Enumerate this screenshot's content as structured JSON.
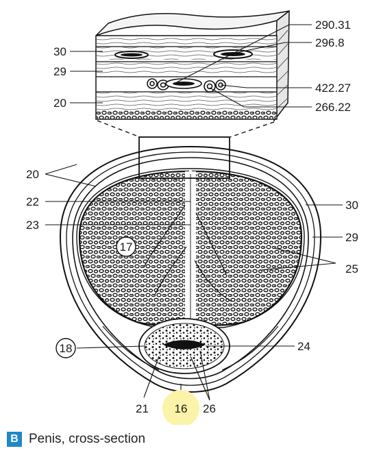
{
  "inset_labels": {
    "label_290_31": "290.31",
    "label_296_8": "296.8",
    "label_422_27": "422.27",
    "label_266_22": "266.22",
    "label_30": "30",
    "label_29": "29",
    "label_20": "20"
  },
  "section_labels": {
    "label_20": "20",
    "label_22": "22",
    "label_23": "23",
    "label_30": "30",
    "label_29": "29",
    "label_17": "17",
    "label_25": "25",
    "label_18": "18",
    "label_24": "24",
    "label_21": "21",
    "label_16": "16",
    "label_26": "26"
  },
  "caption": {
    "letter": "B",
    "text": "Penis, cross-section"
  },
  "colors": {
    "ink": "#1a1a1a",
    "highlight": "#fbf3a8",
    "badge": "#1e88c8"
  }
}
